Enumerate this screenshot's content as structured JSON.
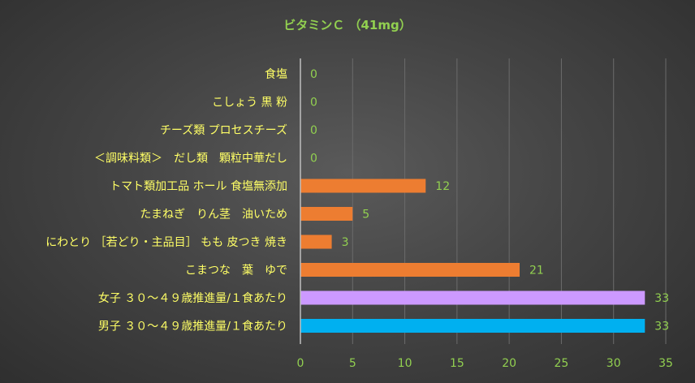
{
  "chart_data": {
    "type": "bar",
    "orientation": "horizontal",
    "title": "ビタミンＣ （41mg）",
    "categories": [
      "食塩",
      "こしょう 黒 粉",
      "チーズ類 プロセスチーズ",
      "＜調味料類＞　だし類　顆粒中華だし",
      "トマト類加工品 ホール 食塩無添加",
      "たまねぎ　りん茎　油いため",
      "にわとり ［若どり・主品目］ もも 皮つき 焼き",
      "こまつな　葉　ゆで",
      "女子 ３０～４９歳推進量/１食あたり",
      "男子 ３０～４９歳推進量/１食あたり"
    ],
    "values": [
      0,
      0,
      0,
      0,
      12,
      5,
      3,
      21,
      33,
      33
    ],
    "bar_colors": [
      "#ed7d31",
      "#ed7d31",
      "#ed7d31",
      "#ed7d31",
      "#ed7d31",
      "#ed7d31",
      "#ed7d31",
      "#ed7d31",
      "#cc99ff",
      "#00b0f0"
    ],
    "xlim": [
      0,
      35
    ],
    "xticks": [
      0,
      5,
      10,
      15,
      20,
      25,
      30,
      35
    ],
    "grid": true,
    "legend": "none",
    "colors": {
      "title": "#92d050",
      "category_text": "#ffff66",
      "value_text": "#92d050",
      "tick_text": "#92d050"
    }
  }
}
